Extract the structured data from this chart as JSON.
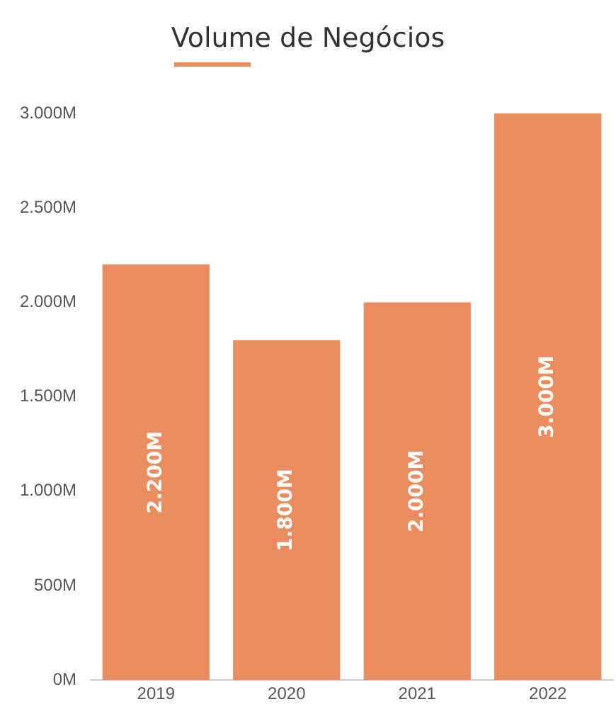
{
  "chart_data": {
    "type": "bar",
    "title": "Volume de Negócios",
    "categories": [
      "2019",
      "2020",
      "2021",
      "2022"
    ],
    "values": [
      2200,
      1800,
      2000,
      3000
    ],
    "value_labels": [
      "2.200M",
      "1.800M",
      "2.000M",
      "3.000M"
    ],
    "color": "#eb8c5e",
    "ylim": [
      0,
      3000
    ],
    "yticks": [
      {
        "value": 0,
        "label": "0M"
      },
      {
        "value": 500,
        "label": "500M"
      },
      {
        "value": 1000,
        "label": "1.000M"
      },
      {
        "value": 1500,
        "label": "1.500M"
      },
      {
        "value": 2000,
        "label": "2.000M"
      },
      {
        "value": 2500,
        "label": "2.500M"
      },
      {
        "value": 3000,
        "label": "3.000M"
      }
    ],
    "grid": false,
    "legend": false
  }
}
